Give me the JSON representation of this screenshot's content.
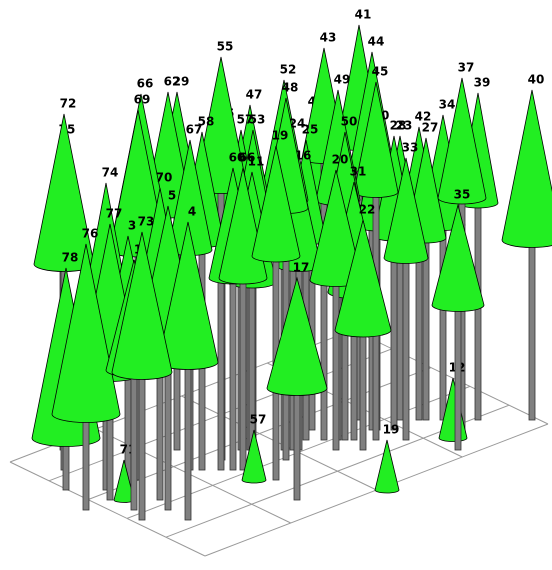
{
  "tree_labels": [
    "41",
    "43",
    "44",
    "55",
    "52",
    "45",
    "37",
    "40",
    "39",
    "66",
    "62",
    "29",
    "49",
    "48",
    "47",
    "72",
    "69",
    "46",
    "75",
    "65",
    "58",
    "57",
    "53",
    "67",
    "19",
    "24",
    "25",
    "50",
    "30",
    "28",
    "23",
    "42",
    "34",
    "27",
    "33",
    "16",
    "60",
    "66",
    "11",
    "20",
    "31",
    "74",
    "70",
    "5",
    "4",
    "35",
    "22",
    "77",
    "73",
    "3",
    "76",
    "78",
    "17",
    "1",
    "12",
    "57",
    "19",
    "71"
  ]
}
